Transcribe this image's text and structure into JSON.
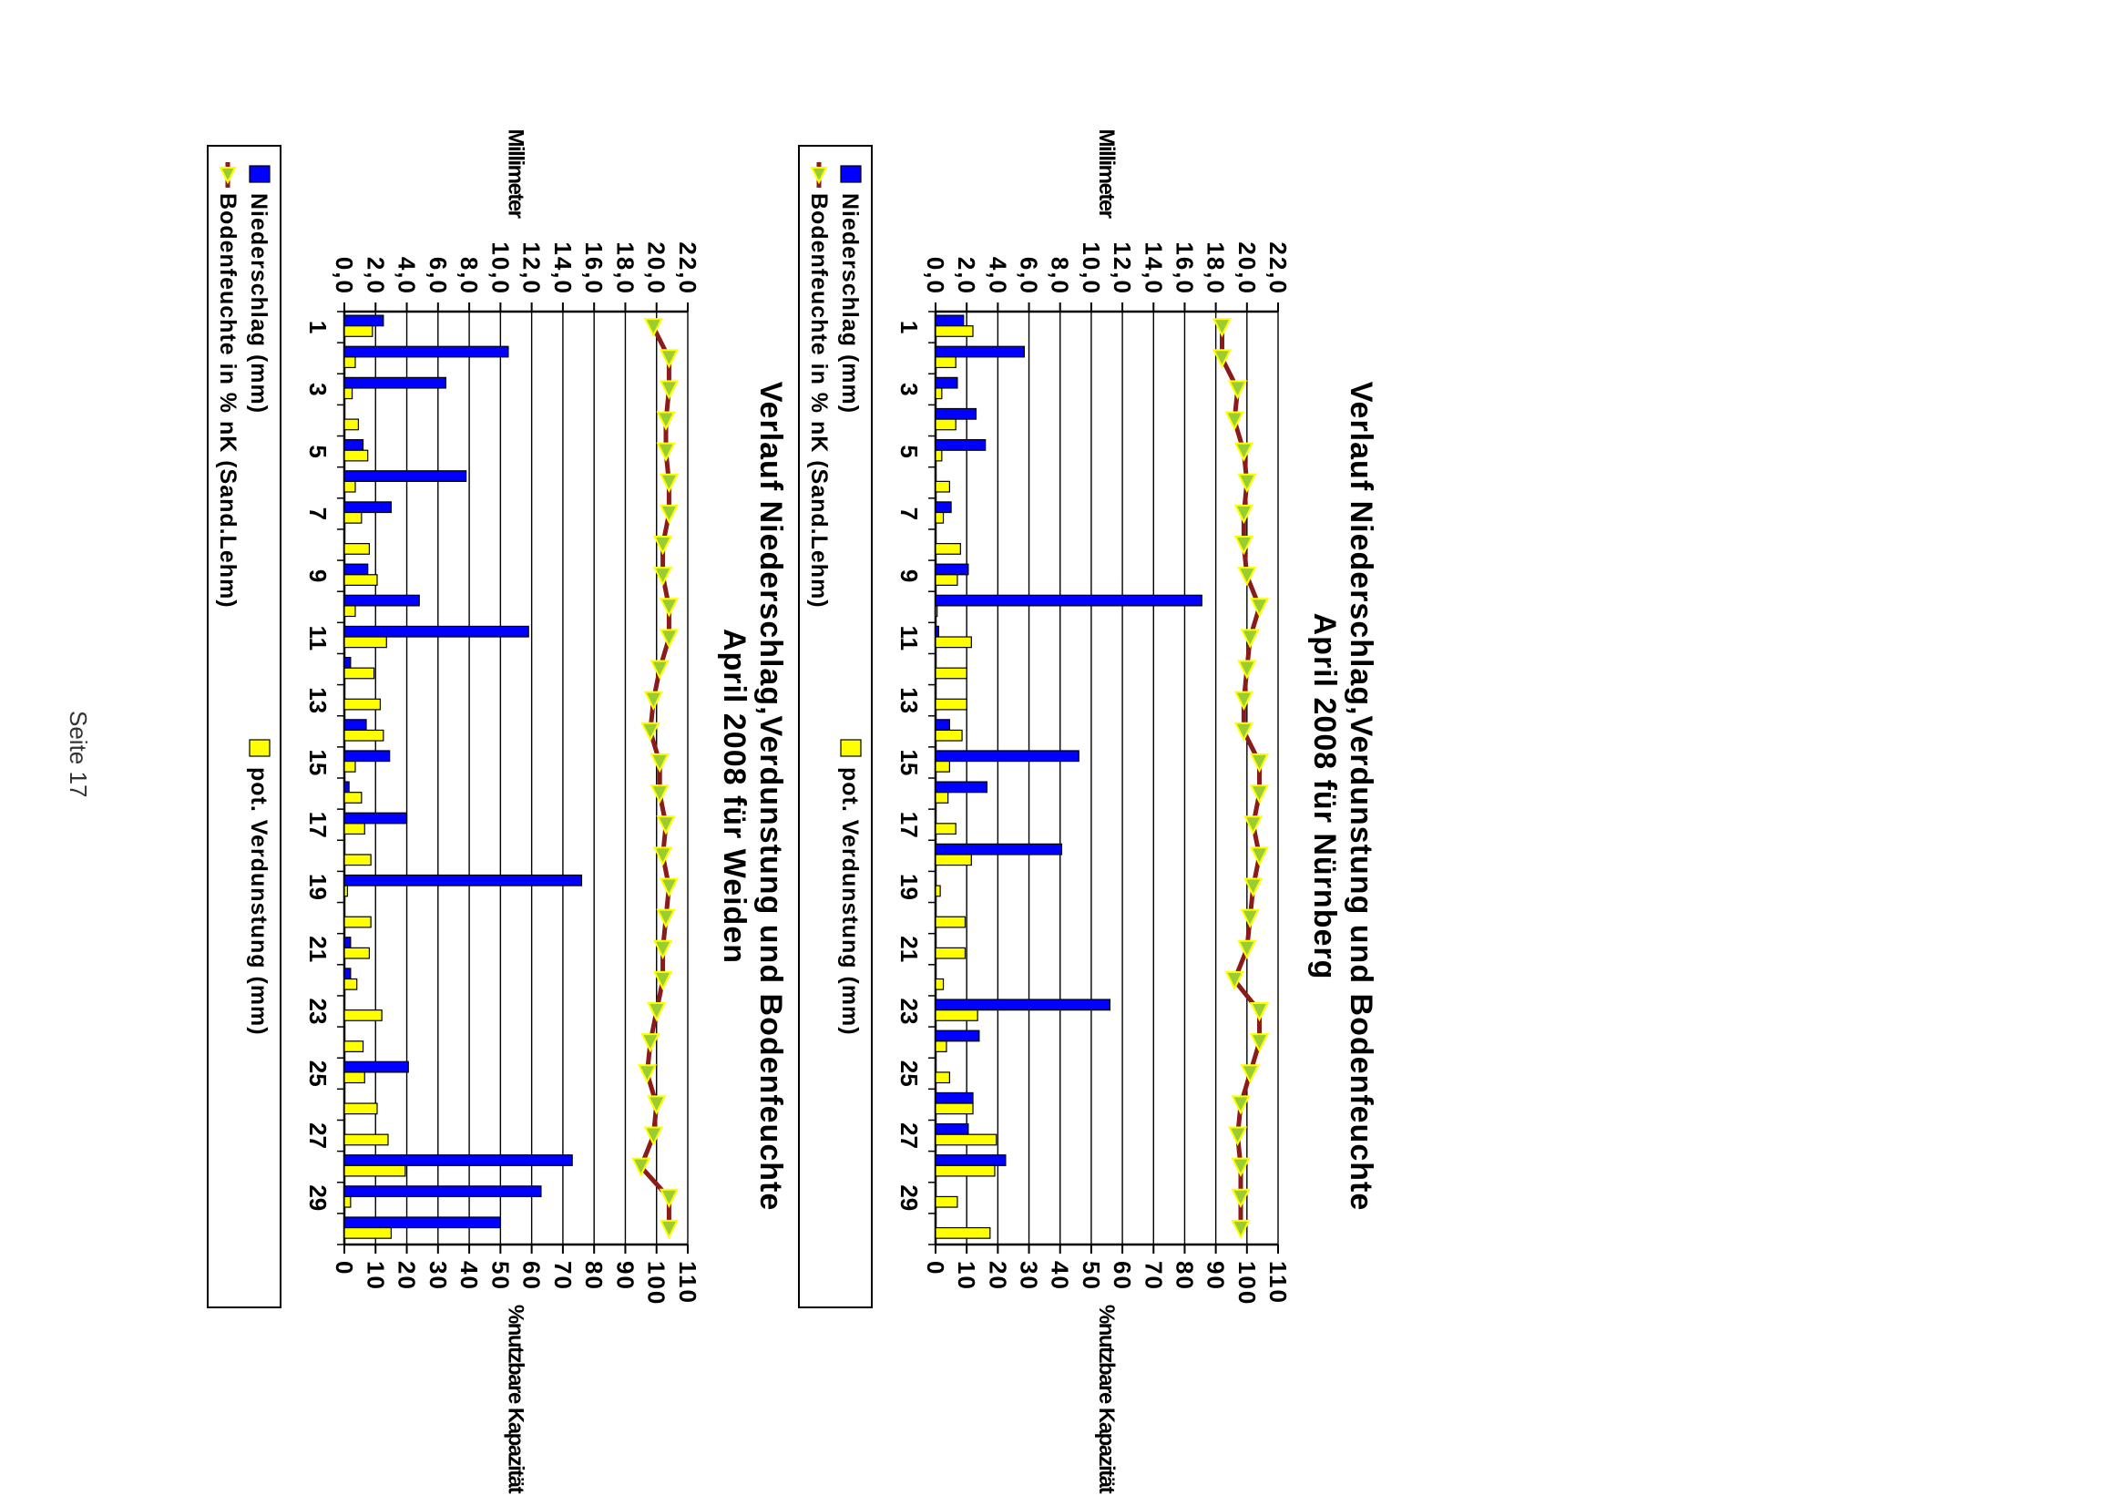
{
  "page": {
    "footer": "Seite 17"
  },
  "chart_data": [
    {
      "type": "bar",
      "title_line1": "Verlauf Niederschlag,Verdunstung und Bodenfeuchte",
      "title_line2": "April 2008 für Nürnberg",
      "ylabel_left": "Millimeter",
      "ylabel_right": "%nutzbare Kapazität",
      "ylim_left": [
        0,
        22
      ],
      "yticks_left": [
        "0,0",
        "2,0",
        "4,0",
        "6,0",
        "8,0",
        "10,0",
        "12,0",
        "14,0",
        "16,0",
        "18,0",
        "20,0",
        "22,0"
      ],
      "ylim_right": [
        0,
        110
      ],
      "yticks_right": [
        "0",
        "10",
        "20",
        "30",
        "40",
        "50",
        "60",
        "70",
        "80",
        "90",
        "100",
        "110"
      ],
      "x": [
        1,
        2,
        3,
        4,
        5,
        6,
        7,
        8,
        9,
        10,
        11,
        12,
        13,
        14,
        15,
        16,
        17,
        18,
        19,
        20,
        21,
        22,
        23,
        24,
        25,
        26,
        27,
        28,
        29,
        30
      ],
      "xtick_labels": [
        "1",
        "3",
        "5",
        "7",
        "9",
        "11",
        "13",
        "15",
        "17",
        "19",
        "21",
        "23",
        "25",
        "27",
        "29"
      ],
      "grid": true,
      "legend_position": "bottom",
      "series": [
        {
          "name": "Niederschlag (mm)",
          "kind": "bar",
          "axis": "left",
          "color": "#0000ff",
          "values": [
            1.8,
            5.7,
            1.4,
            2.6,
            3.2,
            0,
            1.0,
            0,
            2.1,
            17.1,
            0.2,
            0,
            0,
            0.9,
            9.2,
            3.3,
            0,
            8.1,
            0,
            0,
            0,
            0,
            11.2,
            2.8,
            0,
            2.4,
            2.1,
            4.5,
            0,
            0
          ]
        },
        {
          "name": "pot. Verdunstung (mm)",
          "kind": "bar",
          "axis": "left",
          "color": "#ffff00",
          "values": [
            2.4,
            1.3,
            0.4,
            1.3,
            0.4,
            0.9,
            0.5,
            1.6,
            1.4,
            0.1,
            2.3,
            2.0,
            2.0,
            1.7,
            0.9,
            0.8,
            1.3,
            2.3,
            0.3,
            1.9,
            1.9,
            0.5,
            2.7,
            0.7,
            0.9,
            2.4,
            3.9,
            3.8,
            1.4,
            3.5
          ]
        },
        {
          "name": "Bodenfeuchte in % nK (Sand.Lehm)",
          "kind": "line",
          "axis": "right",
          "color": "#8b1a1a",
          "marker_color": "#9acd32",
          "values": [
            92,
            92,
            97,
            96,
            99,
            100,
            99,
            99,
            100,
            104,
            101,
            100,
            99,
            99,
            104,
            104,
            102,
            104,
            102,
            101,
            100,
            96,
            104,
            104,
            101,
            98,
            97,
            98,
            98,
            98
          ]
        }
      ]
    },
    {
      "type": "bar",
      "title_line1": "Verlauf Niederschlag,Verdunstung und Bodenfeuchte",
      "title_line2": "April 2008 für Weiden",
      "ylabel_left": "Millimeter",
      "ylabel_right": "%nutzbare Kapazität",
      "ylim_left": [
        0,
        22
      ],
      "yticks_left": [
        "0,0",
        "2,0",
        "4,0",
        "6,0",
        "8,0",
        "10,0",
        "12,0",
        "14,0",
        "16,0",
        "18,0",
        "20,0",
        "22,0"
      ],
      "ylim_right": [
        0,
        110
      ],
      "yticks_right": [
        "0",
        "10",
        "20",
        "30",
        "40",
        "50",
        "60",
        "70",
        "80",
        "90",
        "100",
        "110"
      ],
      "x": [
        1,
        2,
        3,
        4,
        5,
        6,
        7,
        8,
        9,
        10,
        11,
        12,
        13,
        14,
        15,
        16,
        17,
        18,
        19,
        20,
        21,
        22,
        23,
        24,
        25,
        26,
        27,
        28,
        29,
        30
      ],
      "xtick_labels": [
        "1",
        "3",
        "5",
        "7",
        "9",
        "11",
        "13",
        "15",
        "17",
        "19",
        "21",
        "23",
        "25",
        "27",
        "29"
      ],
      "grid": true,
      "legend_position": "bottom",
      "series": [
        {
          "name": "Niederschlag (mm)",
          "kind": "bar",
          "axis": "left",
          "color": "#0000ff",
          "values": [
            2.5,
            10.5,
            6.5,
            0,
            1.2,
            7.8,
            3.0,
            0,
            1.5,
            4.8,
            11.8,
            0.4,
            0,
            1.4,
            2.9,
            0.3,
            4.0,
            0,
            15.2,
            0,
            0.4,
            0.4,
            0,
            0,
            4.1,
            0,
            0,
            14.6,
            12.6,
            10.0
          ]
        },
        {
          "name": "pot. Verdunstung (mm)",
          "kind": "bar",
          "axis": "left",
          "color": "#ffff00",
          "values": [
            1.8,
            0.7,
            0.5,
            0.9,
            1.5,
            0.7,
            1.1,
            1.6,
            2.1,
            0.7,
            2.7,
            1.9,
            2.3,
            2.5,
            0.7,
            1.1,
            1.3,
            1.7,
            0.2,
            1.7,
            1.6,
            0.8,
            2.4,
            1.2,
            1.3,
            2.1,
            2.8,
            3.9,
            0.4,
            3.0
          ]
        },
        {
          "name": "Bodenfeuchte in % nK (Sand.Lehm)",
          "kind": "line",
          "axis": "right",
          "color": "#8b1a1a",
          "marker_color": "#9acd32",
          "values": [
            99,
            104,
            104,
            103,
            103,
            104,
            104,
            102,
            102,
            104,
            104,
            101,
            99,
            98,
            101,
            101,
            103,
            102,
            104,
            103,
            102,
            102,
            100,
            98,
            97,
            100,
            99,
            95,
            104,
            104
          ]
        }
      ]
    }
  ]
}
